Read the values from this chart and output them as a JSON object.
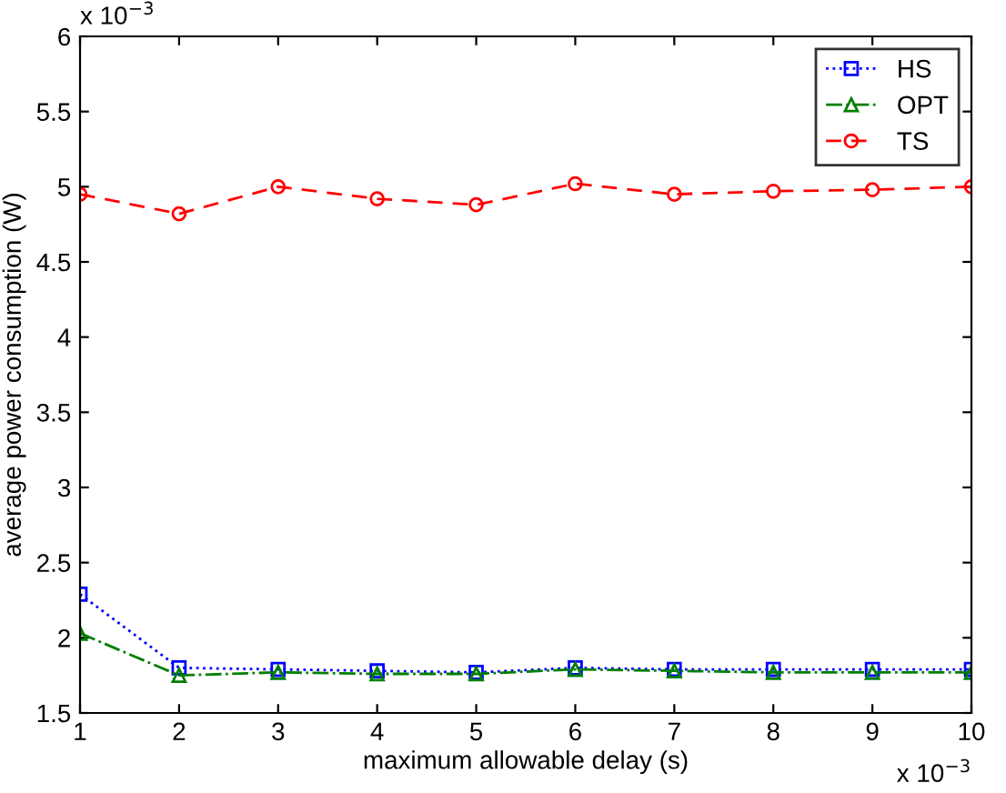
{
  "chart_data": {
    "type": "line",
    "xlabel": "maximum allowable delay (s)",
    "ylabel": "average power consumption (W)",
    "x": [
      1,
      2,
      3,
      4,
      5,
      6,
      7,
      8,
      9,
      10
    ],
    "series": [
      {
        "name": "HS",
        "color": "#0000ff",
        "marker": "square",
        "line_style": "dotted",
        "values": [
          2.29,
          1.8,
          1.79,
          1.78,
          1.77,
          1.8,
          1.79,
          1.79,
          1.79,
          1.79
        ]
      },
      {
        "name": "OPT",
        "color": "#008000",
        "marker": "triangle",
        "line_style": "dashdot",
        "values": [
          2.03,
          1.75,
          1.77,
          1.76,
          1.76,
          1.79,
          1.78,
          1.77,
          1.77,
          1.77
        ]
      },
      {
        "name": "TS",
        "color": "#ff0000",
        "marker": "circle",
        "line_style": "dashed",
        "values": [
          4.95,
          4.82,
          5.0,
          4.92,
          4.88,
          5.02,
          4.95,
          4.97,
          4.98,
          5.0
        ]
      }
    ],
    "xlim": [
      1,
      10
    ],
    "xticks": [
      1,
      2,
      3,
      4,
      5,
      6,
      7,
      8,
      9,
      10
    ],
    "ylim": [
      1.5,
      6
    ],
    "yticks": [
      1.5,
      2,
      2.5,
      3,
      3.5,
      4,
      4.5,
      5,
      5.5,
      6
    ],
    "grid": false,
    "legend": "top right",
    "annotations": [
      "x 10$^{−3}$",
      "x 10$^{−3}$"
    ]
  }
}
